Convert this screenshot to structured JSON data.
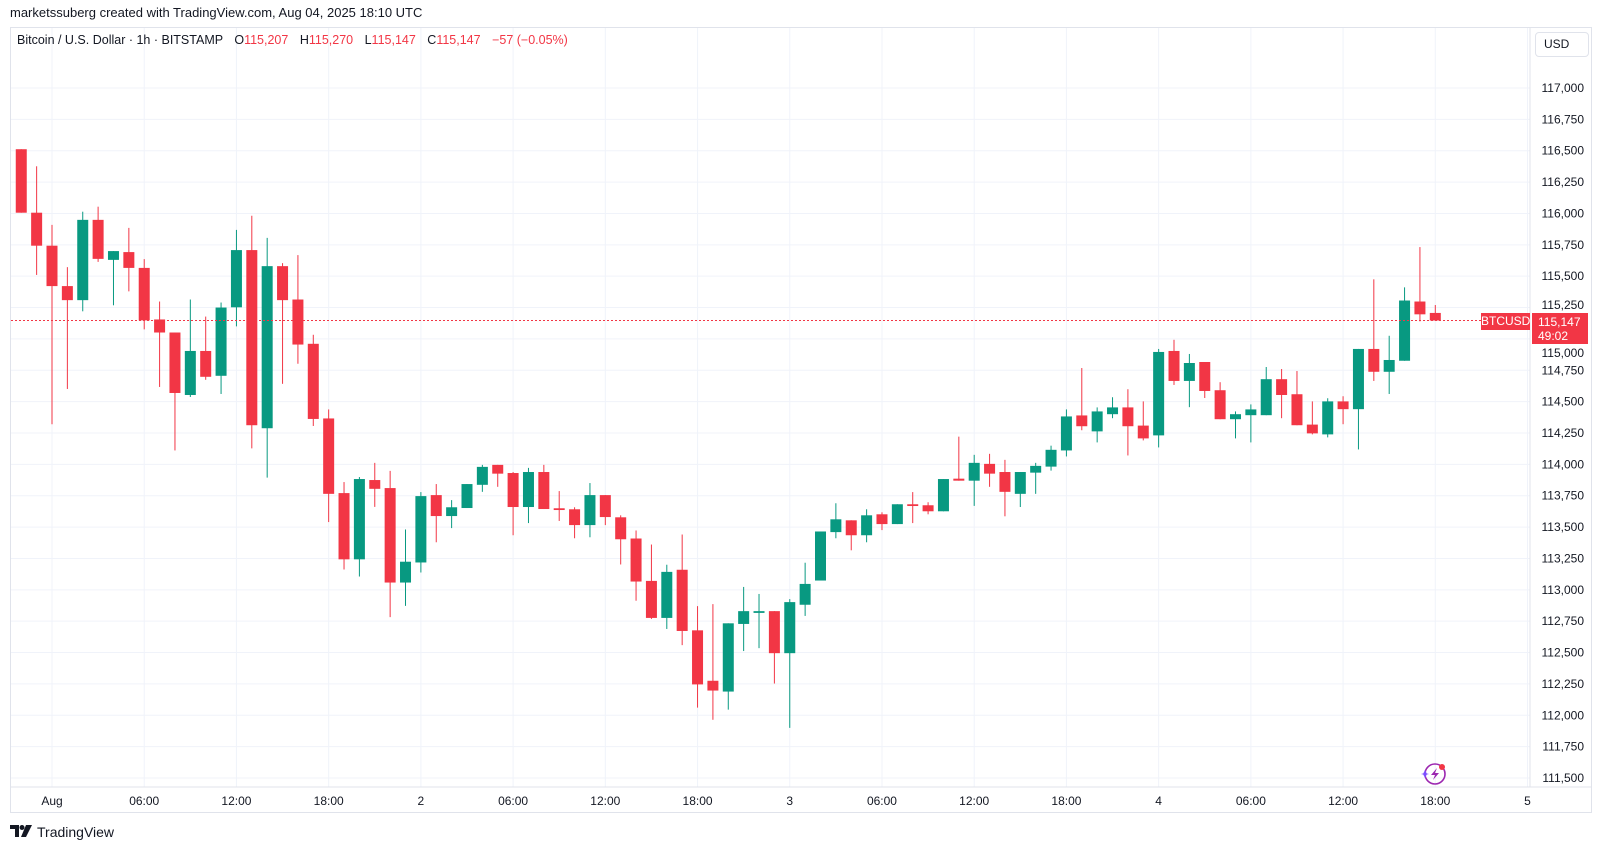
{
  "credit": "marketssuberg created with TradingView.com, Aug 04, 2025 18:10 UTC",
  "legend": {
    "symbol": "Bitcoin / U.S. Dollar · 1h · BITSTAMP",
    "o_label": "O",
    "o": "115,207",
    "h_label": "H",
    "h": "115,270",
    "l_label": "L",
    "l": "115,147",
    "c_label": "C",
    "c": "115,147",
    "change": "−57 (−0.05%)"
  },
  "currency_button": "USD",
  "last_price": {
    "ticker": "BTCUSD",
    "price": "115,147",
    "countdown": "49:02",
    "value": 115147
  },
  "footer_logo": "TradingView",
  "colors": {
    "up": "#089981",
    "down": "#f23645",
    "grid": "#f0f3fa",
    "price_line": "#f23645"
  },
  "icons": {
    "alerts": "lightning-sparkle-icon",
    "logo": "tradingview-logo-icon"
  },
  "chart_data": {
    "type": "candlestick",
    "interval": "1h",
    "ylim": [
      111500,
      117000
    ],
    "grid": true,
    "y_ticks": [
      "117,000",
      "116,750",
      "116,500",
      "116,250",
      "116,000",
      "115,750",
      "115,500",
      "115,250",
      "115,000",
      "114,750",
      "114,500",
      "114,250",
      "114,000",
      "113,750",
      "113,500",
      "113,250",
      "113,000",
      "112,750",
      "112,500",
      "112,250",
      "112,000",
      "111,750",
      "111,500"
    ],
    "x_ticks": [
      "Aug",
      "06:00",
      "12:00",
      "18:00",
      "2",
      "06:00",
      "12:00",
      "18:00",
      "3",
      "06:00",
      "12:00",
      "18:00",
      "4",
      "06:00",
      "12:00",
      "18:00",
      "5"
    ],
    "candles_fields": [
      "time",
      "open",
      "high",
      "low",
      "close"
    ],
    "candles": [
      [
        "2025-07-31 22:00",
        116512,
        116512,
        116006,
        116006
      ],
      [
        "2025-07-31 23:00",
        116006,
        116376,
        115510,
        115743
      ],
      [
        "2025-08-01 00:00",
        115743,
        115909,
        114320,
        115421
      ],
      [
        "2025-08-01 01:00",
        115421,
        115572,
        114601,
        115309
      ],
      [
        "2025-08-01 02:00",
        115309,
        116014,
        115220,
        115949
      ],
      [
        "2025-08-01 03:00",
        115949,
        116054,
        115614,
        115638
      ],
      [
        "2025-08-01 04:00",
        115630,
        115700,
        115268,
        115700
      ],
      [
        "2025-08-01 05:00",
        115692,
        115885,
        115379,
        115566
      ],
      [
        "2025-08-01 06:00",
        115566,
        115636,
        115076,
        115148
      ],
      [
        "2025-08-01 07:00",
        115155,
        115298,
        114617,
        115051
      ],
      [
        "2025-08-01 08:00",
        115051,
        115051,
        114111,
        114569
      ],
      [
        "2025-08-01 09:00",
        114553,
        115314,
        114537,
        114904
      ],
      [
        "2025-08-01 10:00",
        114904,
        115178,
        114674,
        114698
      ],
      [
        "2025-08-01 11:00",
        114706,
        115290,
        114561,
        115250
      ],
      [
        "2025-08-01 12:00",
        115252,
        115869,
        115100,
        115708
      ],
      [
        "2025-08-01 13:00",
        115708,
        115982,
        114127,
        114312
      ],
      [
        "2025-08-01 14:00",
        114288,
        115805,
        113894,
        115580
      ],
      [
        "2025-08-01 15:00",
        115580,
        115604,
        114642,
        115309
      ],
      [
        "2025-08-01 16:00",
        115314,
        115668,
        114802,
        114955
      ],
      [
        "2025-08-01 17:00",
        114961,
        115033,
        114306,
        114362
      ],
      [
        "2025-08-01 18:00",
        114366,
        114438,
        113540,
        113765
      ],
      [
        "2025-08-01 19:00",
        113771,
        113859,
        113162,
        113243
      ],
      [
        "2025-08-01 20:00",
        113243,
        113899,
        113106,
        113883
      ],
      [
        "2025-08-01 21:00",
        113875,
        114012,
        113661,
        113805
      ],
      [
        "2025-08-01 22:00",
        113811,
        113948,
        112782,
        113058
      ],
      [
        "2025-08-01 23:00",
        113058,
        113481,
        112872,
        113224
      ],
      [
        "2025-08-02 00:00",
        113218,
        113779,
        113138,
        113747
      ],
      [
        "2025-08-02 01:00",
        113755,
        113843,
        113379,
        113588
      ],
      [
        "2025-08-02 02:00",
        113588,
        113715,
        113492,
        113658
      ],
      [
        "2025-08-02 03:00",
        113652,
        113843,
        113652,
        113843
      ],
      [
        "2025-08-02 04:00",
        113837,
        113996,
        113781,
        113980
      ],
      [
        "2025-08-02 05:00",
        113996,
        113996,
        113821,
        113926
      ],
      [
        "2025-08-02 06:00",
        113931,
        113939,
        113435,
        113660
      ],
      [
        "2025-08-02 07:00",
        113660,
        113972,
        113532,
        113939
      ],
      [
        "2025-08-02 08:00",
        113939,
        113996,
        113644,
        113644
      ],
      [
        "2025-08-02 09:00",
        113650,
        113787,
        113549,
        113636
      ],
      [
        "2025-08-02 10:00",
        113642,
        113658,
        113411,
        113516
      ],
      [
        "2025-08-02 11:00",
        113516,
        113851,
        113419,
        113755
      ],
      [
        "2025-08-02 12:00",
        113755,
        113755,
        113516,
        113580
      ],
      [
        "2025-08-02 13:00",
        113578,
        113594,
        113202,
        113403
      ],
      [
        "2025-08-02 14:00",
        113409,
        113473,
        112913,
        113066
      ],
      [
        "2025-08-02 15:00",
        113071,
        113361,
        112768,
        112776
      ],
      [
        "2025-08-02 16:00",
        112776,
        113200,
        112688,
        113143
      ],
      [
        "2025-08-02 17:00",
        113160,
        113441,
        112559,
        112672
      ],
      [
        "2025-08-02 18:00",
        112677,
        112870,
        112061,
        112246
      ],
      [
        "2025-08-02 19:00",
        112275,
        112886,
        111964,
        112197
      ],
      [
        "2025-08-02 20:00",
        112189,
        112733,
        112045,
        112733
      ],
      [
        "2025-08-02 21:00",
        112728,
        113023,
        112512,
        112830
      ],
      [
        "2025-08-02 22:00",
        112816,
        112967,
        112535,
        112830
      ],
      [
        "2025-08-02 23:00",
        112830,
        112830,
        112253,
        112495
      ],
      [
        "2025-08-03 00:00",
        112495,
        112926,
        111900,
        112902
      ],
      [
        "2025-08-03 01:00",
        112881,
        113216,
        112792,
        113047
      ],
      [
        "2025-08-03 02:00",
        113074,
        113465,
        113074,
        113465
      ],
      [
        "2025-08-03 03:00",
        113460,
        113690,
        113411,
        113562
      ],
      [
        "2025-08-03 04:00",
        113554,
        113554,
        113315,
        113435
      ],
      [
        "2025-08-03 05:00",
        113435,
        113642,
        113379,
        113594
      ],
      [
        "2025-08-03 06:00",
        113602,
        113618,
        113476,
        113524
      ],
      [
        "2025-08-03 07:00",
        113524,
        113682,
        113524,
        113682
      ],
      [
        "2025-08-03 08:00",
        113682,
        113779,
        113532,
        113668
      ],
      [
        "2025-08-03 09:00",
        113674,
        113698,
        113602,
        113626
      ],
      [
        "2025-08-03 10:00",
        113626,
        113883,
        113626,
        113883
      ],
      [
        "2025-08-03 11:00",
        113886,
        114221,
        113870,
        113870
      ],
      [
        "2025-08-03 12:00",
        113870,
        114076,
        113669,
        114012
      ],
      [
        "2025-08-03 13:00",
        114004,
        114084,
        113821,
        113926
      ],
      [
        "2025-08-03 14:00",
        113939,
        114036,
        113586,
        113781
      ],
      [
        "2025-08-03 15:00",
        113765,
        113939,
        113660,
        113939
      ],
      [
        "2025-08-03 16:00",
        113934,
        114012,
        113765,
        113988
      ],
      [
        "2025-08-03 17:00",
        113982,
        114149,
        113950,
        114116
      ],
      [
        "2025-08-03 18:00",
        114111,
        114438,
        114063,
        114382
      ],
      [
        "2025-08-03 19:00",
        114390,
        114768,
        114272,
        114304
      ],
      [
        "2025-08-03 20:00",
        114263,
        114454,
        114175,
        114422
      ],
      [
        "2025-08-03 21:00",
        114400,
        114535,
        114368,
        114454
      ],
      [
        "2025-08-03 22:00",
        114454,
        114599,
        114071,
        114304
      ],
      [
        "2025-08-03 23:00",
        114309,
        114502,
        114191,
        114207
      ],
      [
        "2025-08-04 00:00",
        114231,
        114920,
        114135,
        114896
      ],
      [
        "2025-08-04 01:00",
        114904,
        114993,
        114633,
        114665
      ],
      [
        "2025-08-04 02:00",
        114665,
        114880,
        114456,
        114808
      ],
      [
        "2025-08-04 03:00",
        114816,
        114816,
        114529,
        114585
      ],
      [
        "2025-08-04 04:00",
        114591,
        114655,
        114360,
        114360
      ],
      [
        "2025-08-04 05:00",
        114360,
        114422,
        114207,
        114400
      ],
      [
        "2025-08-04 06:00",
        114392,
        114478,
        114175,
        114438
      ],
      [
        "2025-08-04 07:00",
        114392,
        114776,
        114392,
        114679
      ],
      [
        "2025-08-04 08:00",
        114679,
        114760,
        114368,
        114553
      ],
      [
        "2025-08-04 09:00",
        114559,
        114744,
        114312,
        114312
      ],
      [
        "2025-08-04 10:00",
        114317,
        114502,
        114239,
        114247
      ],
      [
        "2025-08-04 11:00",
        114239,
        114527,
        114215,
        114502
      ],
      [
        "2025-08-04 12:00",
        114502,
        114543,
        114320,
        114440
      ],
      [
        "2025-08-04 13:00",
        114440,
        114920,
        114119,
        114920
      ],
      [
        "2025-08-04 14:00",
        114920,
        115475,
        114665,
        114738
      ],
      [
        "2025-08-04 15:00",
        114738,
        115025,
        114561,
        114832
      ],
      [
        "2025-08-04 16:00",
        114826,
        115411,
        114826,
        115306
      ],
      [
        "2025-08-04 17:00",
        115298,
        115732,
        115140,
        115196
      ],
      [
        "2025-08-04 18:00",
        115207,
        115270,
        115147,
        115147
      ]
    ]
  }
}
